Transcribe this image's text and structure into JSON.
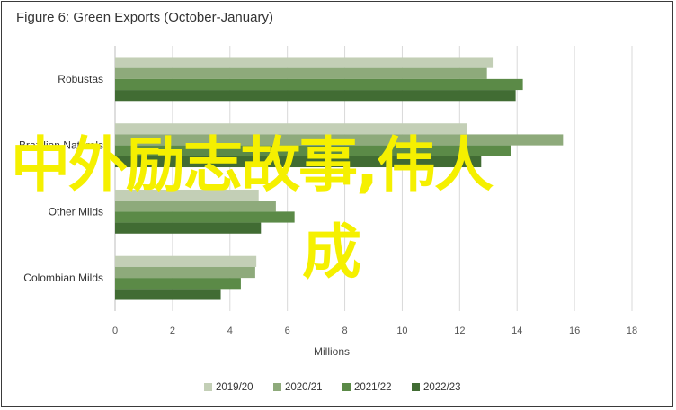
{
  "chart_data": {
    "type": "bar",
    "orientation": "horizontal",
    "title": "Figure 6: Green Exports (October-January)",
    "xlabel": "Millions",
    "ylabel": "",
    "xlim": [
      0,
      18
    ],
    "ticks": [
      0,
      2,
      4,
      6,
      8,
      10,
      12,
      14,
      16,
      18
    ],
    "grid": true,
    "legend_position": "bottom",
    "categories": [
      "Robustas",
      "Brazilian Naturals",
      "Other Milds",
      "Colombian Milds"
    ],
    "series": [
      {
        "name": "2019/20",
        "color": "#c3cfb6",
        "values": [
          13.15,
          12.25,
          5.0,
          4.92
        ]
      },
      {
        "name": "2020/21",
        "color": "#8eaa7b",
        "values": [
          12.95,
          15.6,
          5.6,
          4.88
        ]
      },
      {
        "name": "2021/22",
        "color": "#5b8a47",
        "values": [
          14.2,
          13.8,
          6.25,
          4.38
        ]
      },
      {
        "name": "2022/23",
        "color": "#416c33",
        "values": [
          13.95,
          12.75,
          5.08,
          3.68
        ]
      }
    ]
  },
  "overlay": {
    "line1": "中外励志故事,伟人",
    "line2": "成",
    "color": "#f5f000"
  }
}
